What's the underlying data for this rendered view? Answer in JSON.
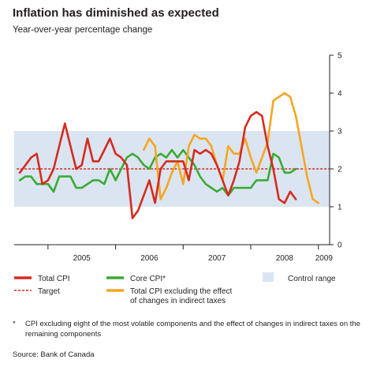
{
  "title": "Inflation has diminished as expected",
  "subtitle": "Year-over-year percentage change",
  "footnote_marker": "*",
  "footnote": "CPI excluding eight of the most volatile components and the effect of changes in indirect taxes on the remaining components",
  "source": "Source: Bank of Canada",
  "colors": {
    "total_cpi": "#d52b1e",
    "target": "#d52b1e",
    "core_cpi": "#3aaa35",
    "total_cpi_ex_taxes": "#f5a623",
    "control_range": "#dbe5f1"
  },
  "chart_data": {
    "type": "line",
    "y_axis": {
      "ylim": [
        0,
        5
      ],
      "ticks": [
        "0",
        "1",
        "2",
        "3",
        "4",
        "5"
      ],
      "position": "right"
    },
    "x_axis": {
      "years": [
        "2005",
        "2006",
        "2007",
        "2008",
        "2009"
      ],
      "range": [
        "2004-07",
        "2009-03"
      ]
    },
    "control_range": [
      1,
      3
    ],
    "target": 2,
    "legend": {
      "total_cpi": "Total CPI",
      "target": "Target",
      "core_cpi": "Core CPI*",
      "total_cpi_ex_taxes_line1": "Total CPI excluding the effect",
      "total_cpi_ex_taxes_line2": "of changes in indirect taxes",
      "control_range": "Control range"
    },
    "series": [
      {
        "name": "Total CPI",
        "start": "2004-08",
        "values": [
          1.9,
          2.1,
          2.3,
          2.4,
          1.6,
          1.7,
          2.0,
          2.6,
          3.2,
          2.6,
          2.0,
          2.1,
          2.8,
          2.2,
          2.2,
          2.5,
          2.8,
          2.4,
          2.3,
          2.1,
          0.7,
          0.9,
          1.3,
          1.7,
          1.1,
          2.0,
          2.2,
          2.2,
          2.2,
          2.2,
          1.7,
          2.5,
          2.4,
          2.5,
          2.4,
          2.1,
          1.7,
          1.3,
          1.7,
          2.2,
          3.1,
          3.4,
          3.5,
          3.4,
          2.6,
          2.0,
          1.2,
          1.1,
          1.4,
          1.2
        ]
      },
      {
        "name": "Core CPI*",
        "start": "2004-08",
        "values": [
          1.7,
          1.8,
          1.8,
          1.6,
          1.6,
          1.6,
          1.4,
          1.8,
          1.8,
          1.8,
          1.5,
          1.5,
          1.6,
          1.7,
          1.7,
          1.6,
          2.0,
          1.7,
          2.0,
          2.3,
          2.4,
          2.3,
          2.1,
          2.0,
          2.3,
          2.4,
          2.3,
          2.5,
          2.3,
          2.5,
          2.3,
          2.1,
          1.8,
          1.6,
          1.5,
          1.4,
          1.5,
          1.3,
          1.5,
          1.5,
          1.5,
          1.5,
          1.7,
          1.7,
          1.7,
          2.4,
          2.3,
          1.9,
          1.9,
          2.0
        ]
      },
      {
        "name": "Total CPI excluding the effect of changes in indirect taxes",
        "start": "2006-06",
        "values": [
          2.5,
          2.8,
          2.6,
          1.2,
          1.5,
          1.9,
          2.2,
          1.6,
          2.6,
          2.9,
          2.8,
          2.8,
          2.6,
          2.1,
          1.7,
          2.6,
          2.4,
          2.4,
          2.8,
          2.3,
          1.9,
          2.3,
          2.7,
          3.8,
          3.9,
          4.0,
          3.9,
          3.4,
          2.6,
          1.8,
          1.2,
          1.1
        ]
      }
    ]
  }
}
